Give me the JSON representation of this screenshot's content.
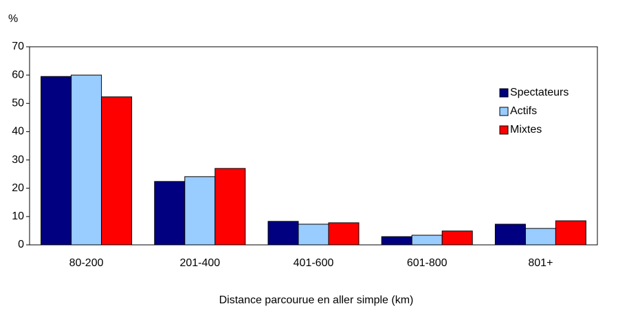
{
  "chart_data": {
    "type": "bar",
    "y_label": "%",
    "x_label": "Distance parcourue en aller simple (km)",
    "categories": [
      "80-200",
      "201-400",
      "401-600",
      "601-800",
      "801+"
    ],
    "series": [
      {
        "name": "Spectateurs",
        "color": "#000080",
        "values": [
          59.5,
          22.4,
          8.3,
          2.9,
          7.3
        ]
      },
      {
        "name": "Actifs",
        "color": "#99ccff",
        "values": [
          60,
          24.1,
          7.3,
          3.4,
          5.8
        ]
      },
      {
        "name": "Mixtes",
        "color": "#ff0000",
        "values": [
          52.3,
          27,
          7.8,
          4.9,
          8.5
        ]
      }
    ],
    "ylim": [
      0,
      70
    ],
    "yticks": [
      0,
      10,
      20,
      30,
      40,
      50,
      60,
      70
    ],
    "legend": "right"
  }
}
